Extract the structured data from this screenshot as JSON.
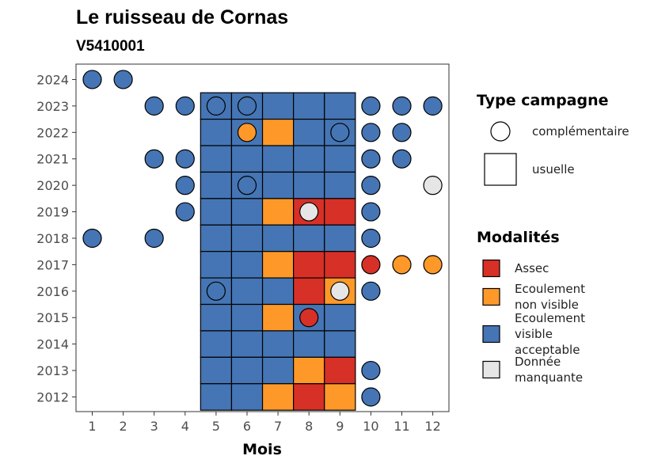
{
  "chart_data": {
    "type": "heatmap",
    "title": "Le ruisseau de Cornas",
    "subtitle": "V5410001",
    "xlabel": "Mois",
    "ylabel": "",
    "x_ticks": [
      "1",
      "2",
      "3",
      "4",
      "5",
      "6",
      "7",
      "8",
      "9",
      "10",
      "11",
      "12"
    ],
    "y_ticks": [
      "2012",
      "2013",
      "2014",
      "2015",
      "2016",
      "2017",
      "2018",
      "2019",
      "2020",
      "2021",
      "2022",
      "2023",
      "2024"
    ],
    "colors": {
      "Assec": "#d73027",
      "Ecoulement non visible": "#fe9929",
      "Ecoulement visible acceptable": "#4575b4",
      "Donnée manquante": "#e6e6e6"
    },
    "legend_type": {
      "title": "Type campagne",
      "items": [
        {
          "shape": "circle",
          "label": "complémentaire"
        },
        {
          "shape": "square",
          "label": "usuelle"
        }
      ]
    },
    "legend_modalites": {
      "title": "Modalités",
      "items": [
        {
          "key": "Assec",
          "lines": [
            "Assec"
          ]
        },
        {
          "key": "Ecoulement non visible",
          "lines": [
            "Ecoulement",
            "non visible"
          ]
        },
        {
          "key": "Ecoulement visible acceptable",
          "lines": [
            "Ecoulement",
            "visible",
            "acceptable"
          ]
        },
        {
          "key": "Donnée manquante",
          "lines": [
            "Donnée",
            "manquante"
          ]
        }
      ]
    },
    "usuelle": [
      {
        "year": 2023,
        "months": [
          "Ecoulement visible acceptable",
          "Ecoulement visible acceptable",
          "Ecoulement visible acceptable",
          "Ecoulement visible acceptable",
          "Ecoulement visible acceptable"
        ]
      },
      {
        "year": 2022,
        "months": [
          "Ecoulement visible acceptable",
          "Ecoulement visible acceptable",
          "Ecoulement non visible",
          "Ecoulement visible acceptable",
          "Ecoulement visible acceptable"
        ]
      },
      {
        "year": 2021,
        "months": [
          "Ecoulement visible acceptable",
          "Ecoulement visible acceptable",
          "Ecoulement visible acceptable",
          "Ecoulement visible acceptable",
          "Ecoulement visible acceptable"
        ]
      },
      {
        "year": 2020,
        "months": [
          "Ecoulement visible acceptable",
          "Ecoulement visible acceptable",
          "Ecoulement visible acceptable",
          "Ecoulement visible acceptable",
          "Ecoulement visible acceptable"
        ]
      },
      {
        "year": 2019,
        "months": [
          "Ecoulement visible acceptable",
          "Ecoulement visible acceptable",
          "Ecoulement non visible",
          "Assec",
          "Assec"
        ]
      },
      {
        "year": 2018,
        "months": [
          "Ecoulement visible acceptable",
          "Ecoulement visible acceptable",
          "Ecoulement visible acceptable",
          "Ecoulement visible acceptable",
          "Ecoulement visible acceptable"
        ]
      },
      {
        "year": 2017,
        "months": [
          "Ecoulement visible acceptable",
          "Ecoulement visible acceptable",
          "Ecoulement non visible",
          "Assec",
          "Assec"
        ]
      },
      {
        "year": 2016,
        "months": [
          "Ecoulement visible acceptable",
          "Ecoulement visible acceptable",
          "Ecoulement visible acceptable",
          "Assec",
          "Ecoulement non visible"
        ]
      },
      {
        "year": 2015,
        "months": [
          "Ecoulement visible acceptable",
          "Ecoulement visible acceptable",
          "Ecoulement non visible",
          "Ecoulement visible acceptable",
          "Ecoulement visible acceptable"
        ]
      },
      {
        "year": 2014,
        "months": [
          "Ecoulement visible acceptable",
          "Ecoulement visible acceptable",
          "Ecoulement visible acceptable",
          "Ecoulement visible acceptable",
          "Ecoulement visible acceptable"
        ]
      },
      {
        "year": 2013,
        "months": [
          "Ecoulement visible acceptable",
          "Ecoulement visible acceptable",
          "Ecoulement visible acceptable",
          "Ecoulement non visible",
          "Assec"
        ]
      },
      {
        "year": 2012,
        "months": [
          "Ecoulement visible acceptable",
          "Ecoulement visible acceptable",
          "Ecoulement non visible",
          "Assec",
          "Ecoulement non visible"
        ]
      }
    ],
    "usuelle_month_start": 5,
    "complementaire": [
      {
        "year": 2024,
        "month": 1,
        "m": "Ecoulement visible acceptable"
      },
      {
        "year": 2024,
        "month": 2,
        "m": "Ecoulement visible acceptable"
      },
      {
        "year": 2023,
        "month": 3,
        "m": "Ecoulement visible acceptable"
      },
      {
        "year": 2023,
        "month": 4,
        "m": "Ecoulement visible acceptable"
      },
      {
        "year": 2023,
        "month": 5,
        "m": "Ecoulement visible acceptable"
      },
      {
        "year": 2023,
        "month": 6,
        "m": "Ecoulement visible acceptable"
      },
      {
        "year": 2023,
        "month": 10,
        "m": "Ecoulement visible acceptable"
      },
      {
        "year": 2023,
        "month": 11,
        "m": "Ecoulement visible acceptable"
      },
      {
        "year": 2023,
        "month": 12,
        "m": "Ecoulement visible acceptable"
      },
      {
        "year": 2022,
        "month": 6,
        "m": "Ecoulement non visible"
      },
      {
        "year": 2022,
        "month": 9,
        "m": "Ecoulement visible acceptable"
      },
      {
        "year": 2022,
        "month": 10,
        "m": "Ecoulement visible acceptable"
      },
      {
        "year": 2022,
        "month": 11,
        "m": "Ecoulement visible acceptable"
      },
      {
        "year": 2021,
        "month": 3,
        "m": "Ecoulement visible acceptable"
      },
      {
        "year": 2021,
        "month": 4,
        "m": "Ecoulement visible acceptable"
      },
      {
        "year": 2021,
        "month": 10,
        "m": "Ecoulement visible acceptable"
      },
      {
        "year": 2021,
        "month": 11,
        "m": "Ecoulement visible acceptable"
      },
      {
        "year": 2020,
        "month": 4,
        "m": "Ecoulement visible acceptable"
      },
      {
        "year": 2020,
        "month": 6,
        "m": "Ecoulement visible acceptable"
      },
      {
        "year": 2020,
        "month": 10,
        "m": "Ecoulement visible acceptable"
      },
      {
        "year": 2020,
        "month": 12,
        "m": "Donnée manquante"
      },
      {
        "year": 2019,
        "month": 4,
        "m": "Ecoulement visible acceptable"
      },
      {
        "year": 2019,
        "month": 8,
        "m": "Donnée manquante"
      },
      {
        "year": 2019,
        "month": 10,
        "m": "Ecoulement visible acceptable"
      },
      {
        "year": 2018,
        "month": 1,
        "m": "Ecoulement visible acceptable"
      },
      {
        "year": 2018,
        "month": 3,
        "m": "Ecoulement visible acceptable"
      },
      {
        "year": 2018,
        "month": 10,
        "m": "Ecoulement visible acceptable"
      },
      {
        "year": 2017,
        "month": 10,
        "m": "Assec"
      },
      {
        "year": 2017,
        "month": 11,
        "m": "Ecoulement non visible"
      },
      {
        "year": 2017,
        "month": 12,
        "m": "Ecoulement non visible"
      },
      {
        "year": 2016,
        "month": 5,
        "m": "Ecoulement visible acceptable"
      },
      {
        "year": 2016,
        "month": 9,
        "m": "Donnée manquante"
      },
      {
        "year": 2016,
        "month": 10,
        "m": "Ecoulement visible acceptable"
      },
      {
        "year": 2015,
        "month": 8,
        "m": "Assec"
      },
      {
        "year": 2013,
        "month": 10,
        "m": "Ecoulement visible acceptable"
      },
      {
        "year": 2012,
        "month": 10,
        "m": "Ecoulement visible acceptable"
      }
    ]
  }
}
